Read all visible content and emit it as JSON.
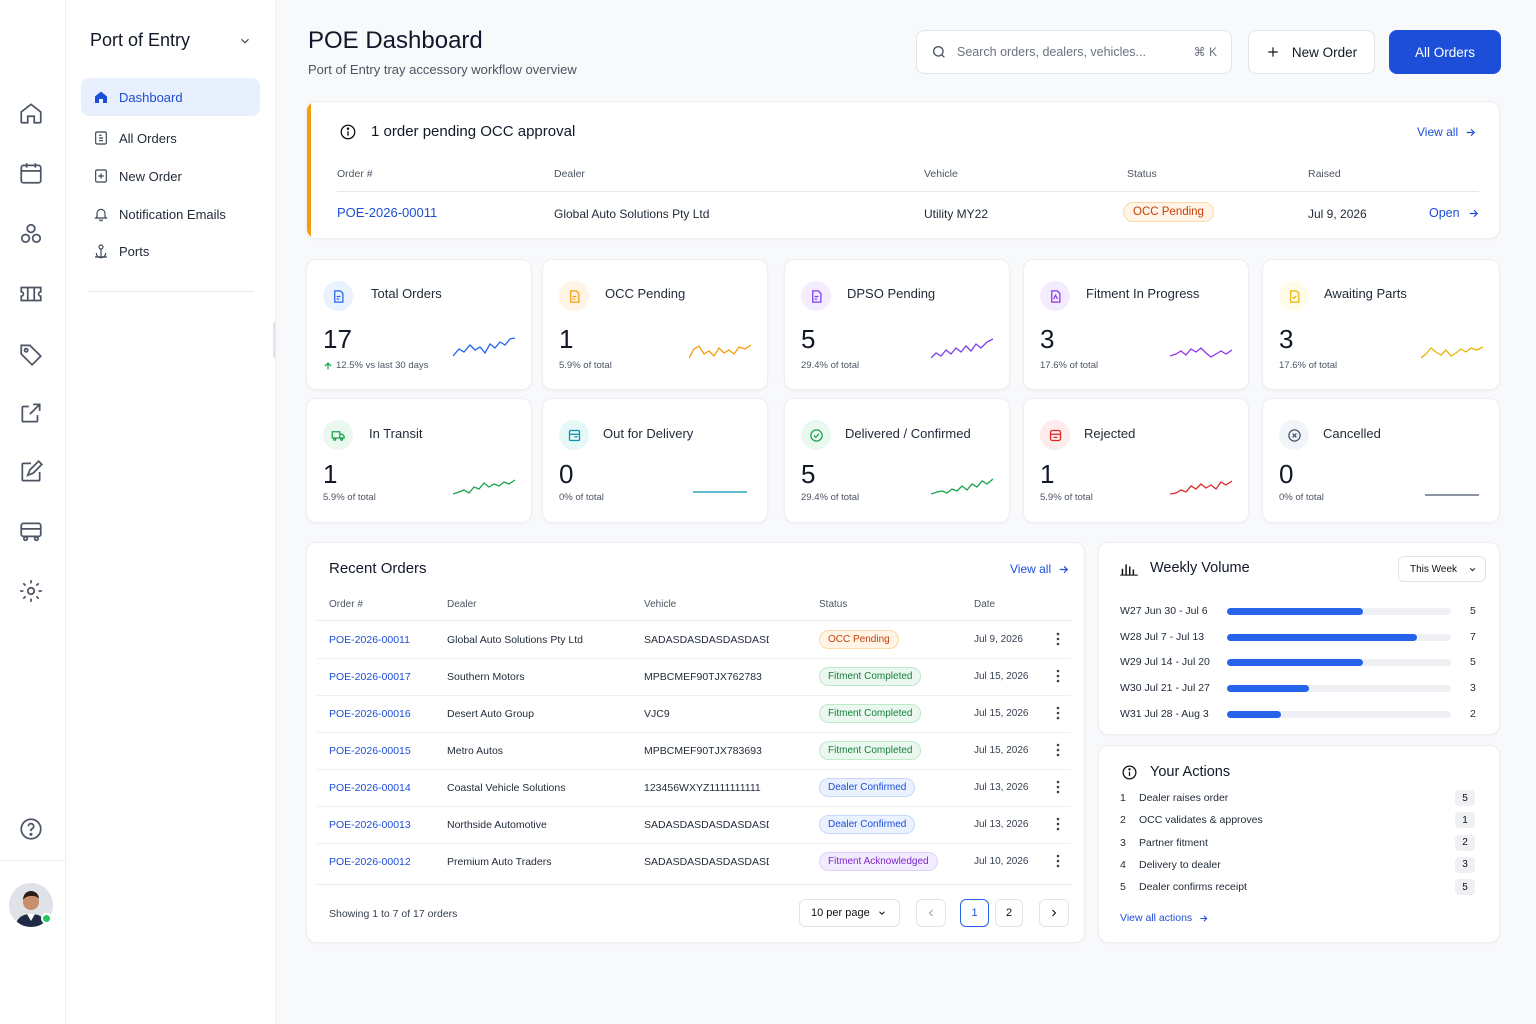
{
  "sidebar": {
    "title": "Port of Entry",
    "items": [
      {
        "label": "Dashboard",
        "active": true
      },
      {
        "label": "All Orders"
      },
      {
        "label": "New Order"
      },
      {
        "label": "Notification Emails"
      },
      {
        "label": "Ports"
      }
    ]
  },
  "rail": {
    "icons": [
      "home-icon",
      "calendar-icon",
      "partners-icon",
      "ticket-icon",
      "tag-icon",
      "external-link-icon",
      "edit-icon",
      "truck-icon",
      "settings-icon"
    ],
    "help_icon": "help-icon"
  },
  "header": {
    "title": "POE Dashboard",
    "subtitle": "Port of Entry tray accessory workflow overview",
    "search_placeholder": "Search orders, dealers, vehicles...",
    "search_shortcut": "⌘ K",
    "new_order": "New Order",
    "all_orders": "All Orders"
  },
  "alert": {
    "title": "1 order pending OCC approval",
    "view_all": "View all",
    "columns": [
      "Order #",
      "Dealer",
      "Vehicle",
      "Status",
      "Raised"
    ],
    "row": {
      "order": "POE-2026-00011",
      "dealer": "Global Auto Solutions Pty Ltd",
      "vehicle": "Utility MY22",
      "status": "OCC Pending",
      "raised": "Jul 9, 2026",
      "action": "Open"
    }
  },
  "kpis": [
    {
      "label": "Total Orders",
      "value": "17",
      "sub": "12.5% vs last 30 days",
      "trend": "up",
      "color": "#2563eb"
    },
    {
      "label": "OCC Pending",
      "value": "1",
      "sub": "5.9% of total",
      "color": "#f59e0b"
    },
    {
      "label": "DPSO Pending",
      "value": "5",
      "sub": "29.4% of total",
      "color": "#7c3aed"
    },
    {
      "label": "Fitment In Progress",
      "value": "3",
      "sub": "17.6% of total",
      "color": "#9333ea"
    },
    {
      "label": "Awaiting Parts",
      "value": "3",
      "sub": "17.6% of total",
      "color": "#eab308"
    },
    {
      "label": "In Transit",
      "value": "1",
      "sub": "5.9% of total",
      "color": "#16a34a"
    },
    {
      "label": "Out for Delivery",
      "value": "0",
      "sub": "0% of total",
      "color": "#0891b2"
    },
    {
      "label": "Delivered / Confirmed",
      "value": "5",
      "sub": "29.4% of total",
      "color": "#16a34a"
    },
    {
      "label": "Rejected",
      "value": "1",
      "sub": "5.9% of total",
      "color": "#dc2626"
    },
    {
      "label": "Cancelled",
      "value": "0",
      "sub": "0% of total",
      "color": "#475569"
    }
  ],
  "recent": {
    "title": "Recent Orders",
    "view_all": "View all",
    "columns": [
      "Order #",
      "Dealer",
      "Vehicle",
      "Status",
      "Date"
    ],
    "rows": [
      {
        "order": "POE-2026-00011",
        "dealer": "Global Auto Solutions Pty Ltd",
        "vehicle": "SADASDASDASDASDASDAS",
        "status": "OCC Pending",
        "kind": "occ",
        "date": "Jul 9, 2026"
      },
      {
        "order": "POE-2026-00017",
        "dealer": "Southern Motors",
        "vehicle": "MPBCMEF90TJX762783",
        "status": "Fitment Completed",
        "kind": "fit",
        "date": "Jul 15, 2026"
      },
      {
        "order": "POE-2026-00016",
        "dealer": "Desert Auto Group",
        "vehicle": "VJC9",
        "status": "Fitment Completed",
        "kind": "fit",
        "date": "Jul 15, 2026"
      },
      {
        "order": "POE-2026-00015",
        "dealer": "Metro Autos",
        "vehicle": "MPBCMEF90TJX783693",
        "status": "Fitment Completed",
        "kind": "fit",
        "date": "Jul 15, 2026"
      },
      {
        "order": "POE-2026-00014",
        "dealer": "Coastal Vehicle Solutions",
        "vehicle": "123456WXYZ1111111111",
        "status": "Dealer Confirmed",
        "kind": "deal",
        "date": "Jul 13, 2026"
      },
      {
        "order": "POE-2026-00013",
        "dealer": "Northside Automotive",
        "vehicle": "SADASDASDASDASDASDAS",
        "status": "Dealer Confirmed",
        "kind": "deal",
        "date": "Jul 13, 2026"
      },
      {
        "order": "POE-2026-00012",
        "dealer": "Premium Auto Traders",
        "vehicle": "SADASDASDASDASDASDAS",
        "status": "Fitment Acknowledged",
        "kind": "ack",
        "date": "Jul 10, 2026"
      }
    ],
    "showing": "Showing 1 to 7 of 17 orders",
    "per_page": "10 per page",
    "pages": [
      "1",
      "2"
    ]
  },
  "weekly": {
    "title": "Weekly Volume",
    "range": "This Week",
    "max": 7,
    "weeks": [
      {
        "label": "W27 Jun 30 - Jul 6",
        "value": 5
      },
      {
        "label": "W28 Jul 7 - Jul 13",
        "value": 7
      },
      {
        "label": "W29 Jul 14 - Jul 20",
        "value": 5
      },
      {
        "label": "W30 Jul 21 - Jul 27",
        "value": 3
      },
      {
        "label": "W31 Jul 28 - Aug 3",
        "value": 2
      }
    ]
  },
  "actions": {
    "title": "Your Actions",
    "items": [
      {
        "n": "1",
        "label": "Dealer raises order",
        "count": "5"
      },
      {
        "n": "2",
        "label": "OCC validates & approves",
        "count": "1"
      },
      {
        "n": "3",
        "label": "Partner fitment",
        "count": "2"
      },
      {
        "n": "4",
        "label": "Delivery to dealer",
        "count": "3"
      },
      {
        "n": "5",
        "label": "Dealer confirms receipt",
        "count": "5"
      }
    ],
    "view_all": "View all actions"
  }
}
